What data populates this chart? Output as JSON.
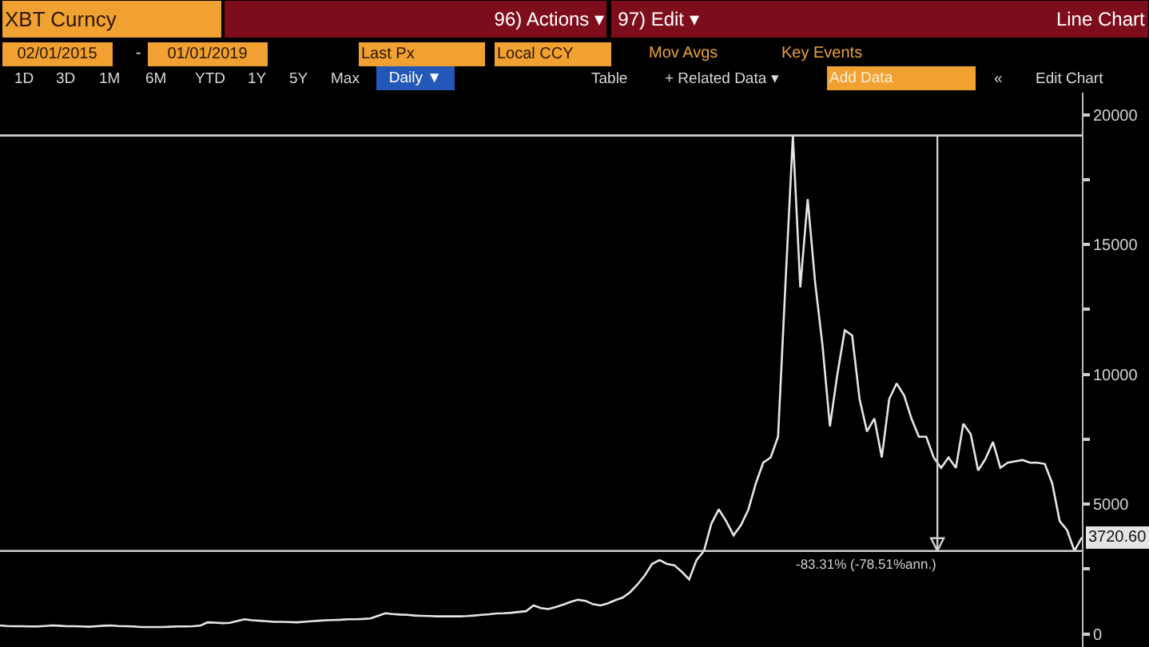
{
  "chart_data": {
    "type": "line",
    "title": "XBT Curncy",
    "annotations": [
      "96) Actions ▾",
      "97) Edit ▾",
      "Line Chart",
      "02/01/2015",
      "-",
      "01/01/2019",
      "Last Px",
      "Local CCY",
      "Mov Avgs",
      "Key Events",
      "1D",
      "3D",
      "1M",
      "6M",
      "YTD",
      "1Y",
      "5Y",
      "Max",
      "Daily ▼",
      "Table",
      "+ Related Data ▾",
      "Add Data",
      "«",
      "Edit Chart"
    ],
    "categories": [
      null,
      null,
      null,
      null,
      null,
      null,
      null,
      null,
      null,
      null,
      null,
      null,
      null,
      null,
      null,
      null,
      null,
      null,
      null,
      null,
      null,
      null,
      null,
      null,
      null,
      null,
      null,
      null,
      null,
      null,
      null,
      null,
      null,
      null,
      null,
      null,
      null,
      null,
      null,
      null,
      null,
      null,
      null,
      null,
      null,
      null,
      null,
      null,
      null,
      null,
      null,
      null,
      null,
      null,
      null,
      null,
      null,
      null,
      null,
      null,
      null,
      null,
      null,
      null,
      null,
      null,
      null,
      null,
      null,
      null,
      null,
      null,
      null,
      null,
      null,
      null,
      null,
      null,
      null,
      null,
      null,
      null,
      null,
      null,
      null,
      null,
      null,
      null,
      null,
      null,
      null,
      null,
      null,
      null,
      null,
      null,
      null,
      null,
      null,
      null,
      null,
      null,
      null,
      null,
      null,
      null,
      null,
      null,
      null,
      null,
      null,
      null,
      null,
      null,
      null,
      null,
      null,
      null,
      null,
      null,
      null,
      null,
      null,
      null,
      null,
      null,
      null,
      null,
      null,
      null,
      null,
      null,
      null,
      null,
      null,
      null,
      null,
      null,
      null,
      null,
      null,
      null,
      null,
      null,
      null,
      null,
      null
    ],
    "color": "#e6e6e6",
    "values": [
      330,
      310,
      300,
      300,
      290,
      290,
      310,
      330,
      320,
      300,
      300,
      290,
      280,
      300,
      320,
      330,
      310,
      300,
      290,
      270,
      270,
      270,
      270,
      280,
      290,
      290,
      300,
      320,
      450,
      440,
      420,
      430,
      500,
      570,
      530,
      510,
      490,
      470,
      470,
      460,
      450,
      470,
      490,
      510,
      530,
      540,
      550,
      570,
      570,
      580,
      600,
      700,
      800,
      770,
      750,
      740,
      710,
      700,
      690,
      680,
      680,
      680,
      680,
      690,
      710,
      740,
      760,
      790,
      800,
      820,
      850,
      880,
      1100,
      1000,
      960,
      1040,
      1130,
      1240,
      1320,
      1280,
      1150,
      1100,
      1180,
      1300,
      1400,
      1600,
      1900,
      2250,
      2700,
      2850,
      2700,
      2650,
      2400,
      2100,
      2850,
      3200,
      4250,
      4800,
      4350,
      3800,
      4200,
      4800,
      5800,
      6600,
      6800,
      7600,
      13500,
      19200,
      13350,
      16750,
      13550,
      11100,
      8000,
      10000,
      11700,
      11500,
      9050,
      7800,
      8300,
      6800,
      9050,
      9650,
      9200,
      8300,
      7600,
      7600,
      6800,
      6400,
      6800,
      6400,
      8100,
      7700,
      6300,
      6750,
      7400,
      6400,
      6600,
      6650,
      6700,
      6600,
      6600,
      6550,
      5800,
      4350,
      4000,
      3200,
      3720.6
    ],
    "value_labels": [
      null,
      null,
      null,
      null,
      null,
      null,
      null,
      null,
      null,
      null,
      null,
      null,
      null,
      null,
      null,
      null,
      null,
      null,
      null,
      null,
      null,
      null,
      null,
      null,
      null,
      null,
      null,
      null,
      null,
      null,
      null,
      null,
      null,
      null,
      null,
      null,
      null,
      null,
      null,
      null,
      null,
      null,
      null,
      null,
      null,
      null,
      null,
      null,
      null,
      null,
      null,
      null,
      null,
      null,
      null,
      null,
      null,
      null,
      null,
      null,
      null,
      null,
      null,
      null,
      null,
      null,
      null,
      null,
      null,
      null,
      null,
      null,
      null,
      null,
      null,
      null,
      null,
      null,
      null,
      null,
      null,
      null,
      null,
      null,
      null,
      null,
      null,
      null,
      null,
      null,
      null,
      null,
      null,
      null,
      null,
      null,
      null,
      null,
      null,
      null,
      null,
      null,
      null,
      null,
      null,
      null,
      null,
      null,
      null,
      null,
      null,
      null,
      null,
      null,
      null,
      null,
      null,
      null,
      null,
      null,
      null,
      null,
      null,
      null,
      null,
      null,
      null,
      null,
      null,
      null,
      null,
      null,
      null,
      null,
      null,
      null,
      null,
      null,
      null,
      null,
      null,
      null,
      null,
      null,
      null,
      null,
      "3720.60"
    ],
    "ylim": [
      -500,
      20850
    ],
    "yticks": [
      0,
      {
        "value": 2500,
        "label": null
      },
      5000,
      {
        "value": 7500,
        "label": null
      },
      10000,
      {
        "value": 12500,
        "label": null
      },
      15000,
      {
        "value": 17500,
        "label": null
      },
      20000
    ],
    "ref_lines": [
      {
        "axis": "y",
        "value": 19200,
        "label": null
      },
      {
        "axis": "y",
        "value": 3200,
        "label": "-83.31% (-78.51%ann.)"
      }
    ],
    "tick_labels": "y",
    "grid": false
  }
}
